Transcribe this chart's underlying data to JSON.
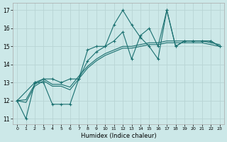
{
  "xlabel": "Humidex (Indice chaleur)",
  "bg_color": "#cce8e8",
  "grid_color": "#b8d4d4",
  "line_color": "#1a7070",
  "xlim": [
    -0.5,
    23.5
  ],
  "ylim": [
    10.7,
    17.4
  ],
  "yticks": [
    11,
    12,
    13,
    14,
    15,
    16,
    17
  ],
  "xticks": [
    0,
    1,
    2,
    3,
    4,
    5,
    6,
    7,
    8,
    9,
    10,
    11,
    12,
    13,
    14,
    15,
    16,
    17,
    18,
    19,
    20,
    21,
    22,
    23
  ],
  "line1_x": [
    0,
    1,
    2,
    3,
    4,
    5,
    6,
    7,
    8,
    9,
    10,
    11,
    12,
    13,
    14,
    15,
    16,
    17,
    18,
    19,
    20,
    21,
    22,
    23
  ],
  "line1_y": [
    12,
    11,
    13,
    13,
    11.8,
    11.8,
    11.8,
    13.2,
    14.8,
    15,
    15,
    16.2,
    17,
    16.2,
    15.5,
    15,
    14.3,
    17,
    15,
    15.3,
    15.3,
    15.3,
    15.3,
    15
  ],
  "line2_x": [
    0,
    2,
    3,
    4,
    5,
    6,
    7,
    8,
    9,
    10,
    11,
    12,
    13,
    14,
    15,
    16,
    17,
    18,
    19,
    20,
    21,
    22,
    23
  ],
  "line2_y": [
    12,
    13,
    13.2,
    13.2,
    13.0,
    13.2,
    13.2,
    14.2,
    14.7,
    15.0,
    15.3,
    15.8,
    14.3,
    15.6,
    16.0,
    15.0,
    17,
    15,
    15.3,
    15.3,
    15.3,
    15.3,
    15
  ],
  "line3_x": [
    0,
    1,
    2,
    3,
    4,
    5,
    6,
    7,
    8,
    9,
    10,
    11,
    12,
    13,
    14,
    15,
    16,
    17,
    18,
    19,
    20,
    21,
    22,
    23
  ],
  "line3_y": [
    12,
    11.9,
    12.8,
    13.1,
    12.8,
    12.8,
    12.6,
    13.2,
    13.8,
    14.2,
    14.5,
    14.7,
    14.9,
    14.9,
    15.0,
    15.1,
    15.1,
    15.2,
    15.2,
    15.2,
    15.2,
    15.2,
    15.1,
    15.0
  ],
  "line4_x": [
    0,
    1,
    2,
    3,
    4,
    5,
    6,
    7,
    8,
    9,
    10,
    11,
    12,
    13,
    14,
    15,
    16,
    17,
    18,
    19,
    20,
    21,
    22,
    23
  ],
  "line4_y": [
    12,
    12.05,
    12.9,
    13.2,
    12.9,
    12.9,
    12.75,
    13.35,
    13.9,
    14.3,
    14.6,
    14.8,
    15.0,
    15.0,
    15.1,
    15.2,
    15.2,
    15.3,
    15.3,
    15.3,
    15.3,
    15.3,
    15.2,
    15.1
  ]
}
